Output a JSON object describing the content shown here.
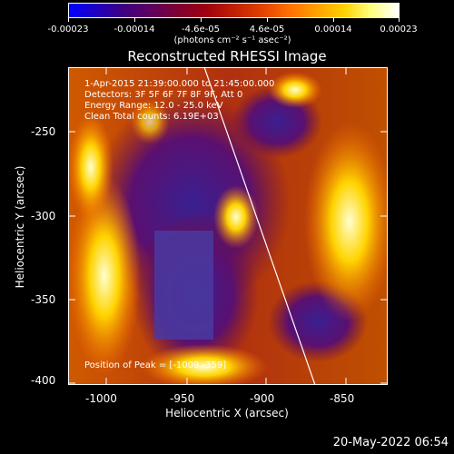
{
  "colorbar": {
    "ticks": [
      "-0.00023",
      "-0.00014",
      "-4.6e-05",
      "4.6e-05",
      "0.00014",
      "0.00023"
    ],
    "units": "(photons cm⁻² s⁻¹ asec⁻²)"
  },
  "title": "Reconstructed RHESSI Image",
  "info": {
    "line1": "1-Apr-2015 21:39:00.000 to 21:45:00.000",
    "line2": "Detectors: 3F 5F 6F 7F 8F 9F, Att 0",
    "line3": "Energy Range: 12.0 - 25.0 keV",
    "line4": "Clean    Total counts: 6.19E+03",
    "peak": "Position of Peak = [-1009,-359]"
  },
  "axes": {
    "xlabel": "Heliocentric X (arcsec)",
    "ylabel": "Heliocentric Y (arcsec)",
    "xticks": [
      "-1000",
      "-950",
      "-900",
      "-850"
    ],
    "yticks": [
      "-250",
      "-300",
      "-350",
      "-400"
    ]
  },
  "timestamp": "20-May-2022 06:54"
}
